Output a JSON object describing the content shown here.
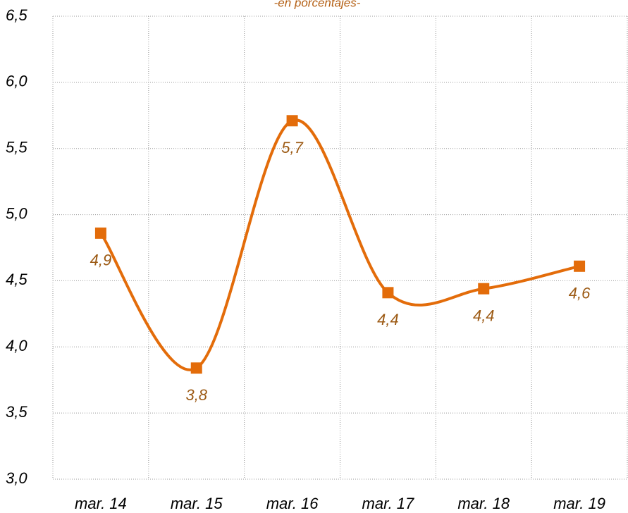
{
  "chart_data": {
    "type": "line",
    "subtitle": "-en porcentajes-",
    "categories": [
      "mar. 14",
      "mar. 15",
      "mar. 16",
      "mar. 17",
      "mar. 18",
      "mar. 19"
    ],
    "values": [
      4.86,
      3.84,
      5.71,
      4.41,
      4.44,
      4.61
    ],
    "value_labels": [
      "4,9",
      "3,8",
      "5,7",
      "4,4",
      "4,4",
      "4,6"
    ],
    "color": "#e36c0a",
    "smooth": true,
    "grid": true,
    "ylim": [
      3.0,
      6.5
    ],
    "yticks": [
      {
        "value": 3.0,
        "label": "3,0"
      },
      {
        "value": 3.5,
        "label": "3,5"
      },
      {
        "value": 4.0,
        "label": "4,0"
      },
      {
        "value": 4.5,
        "label": "4,5"
      },
      {
        "value": 5.0,
        "label": "5,0"
      },
      {
        "value": 5.5,
        "label": "5,5"
      },
      {
        "value": 6.0,
        "label": "6,0"
      },
      {
        "value": 6.5,
        "label": "6,5"
      }
    ]
  }
}
